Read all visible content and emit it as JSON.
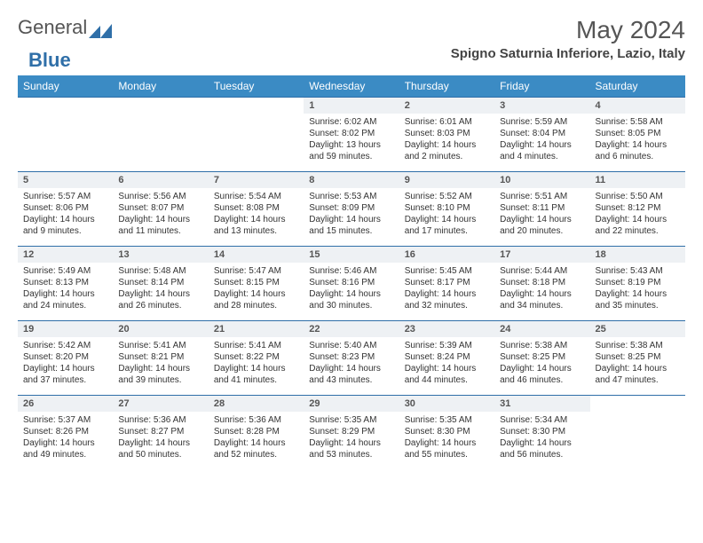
{
  "logo": {
    "text1": "General",
    "text2": "Blue"
  },
  "title": "May 2024",
  "location": "Spigno Saturnia Inferiore, Lazio, Italy",
  "colors": {
    "header_bg": "#3b8bc4",
    "daynum_bg": "#eef1f4",
    "border": "#2f6fa8",
    "text": "#333333",
    "title_text": "#555555"
  },
  "day_names": [
    "Sunday",
    "Monday",
    "Tuesday",
    "Wednesday",
    "Thursday",
    "Friday",
    "Saturday"
  ],
  "weeks": [
    [
      null,
      null,
      null,
      {
        "n": "1",
        "sr": "6:02 AM",
        "ss": "8:02 PM",
        "dl": "13 hours and 59 minutes."
      },
      {
        "n": "2",
        "sr": "6:01 AM",
        "ss": "8:03 PM",
        "dl": "14 hours and 2 minutes."
      },
      {
        "n": "3",
        "sr": "5:59 AM",
        "ss": "8:04 PM",
        "dl": "14 hours and 4 minutes."
      },
      {
        "n": "4",
        "sr": "5:58 AM",
        "ss": "8:05 PM",
        "dl": "14 hours and 6 minutes."
      }
    ],
    [
      {
        "n": "5",
        "sr": "5:57 AM",
        "ss": "8:06 PM",
        "dl": "14 hours and 9 minutes."
      },
      {
        "n": "6",
        "sr": "5:56 AM",
        "ss": "8:07 PM",
        "dl": "14 hours and 11 minutes."
      },
      {
        "n": "7",
        "sr": "5:54 AM",
        "ss": "8:08 PM",
        "dl": "14 hours and 13 minutes."
      },
      {
        "n": "8",
        "sr": "5:53 AM",
        "ss": "8:09 PM",
        "dl": "14 hours and 15 minutes."
      },
      {
        "n": "9",
        "sr": "5:52 AM",
        "ss": "8:10 PM",
        "dl": "14 hours and 17 minutes."
      },
      {
        "n": "10",
        "sr": "5:51 AM",
        "ss": "8:11 PM",
        "dl": "14 hours and 20 minutes."
      },
      {
        "n": "11",
        "sr": "5:50 AM",
        "ss": "8:12 PM",
        "dl": "14 hours and 22 minutes."
      }
    ],
    [
      {
        "n": "12",
        "sr": "5:49 AM",
        "ss": "8:13 PM",
        "dl": "14 hours and 24 minutes."
      },
      {
        "n": "13",
        "sr": "5:48 AM",
        "ss": "8:14 PM",
        "dl": "14 hours and 26 minutes."
      },
      {
        "n": "14",
        "sr": "5:47 AM",
        "ss": "8:15 PM",
        "dl": "14 hours and 28 minutes."
      },
      {
        "n": "15",
        "sr": "5:46 AM",
        "ss": "8:16 PM",
        "dl": "14 hours and 30 minutes."
      },
      {
        "n": "16",
        "sr": "5:45 AM",
        "ss": "8:17 PM",
        "dl": "14 hours and 32 minutes."
      },
      {
        "n": "17",
        "sr": "5:44 AM",
        "ss": "8:18 PM",
        "dl": "14 hours and 34 minutes."
      },
      {
        "n": "18",
        "sr": "5:43 AM",
        "ss": "8:19 PM",
        "dl": "14 hours and 35 minutes."
      }
    ],
    [
      {
        "n": "19",
        "sr": "5:42 AM",
        "ss": "8:20 PM",
        "dl": "14 hours and 37 minutes."
      },
      {
        "n": "20",
        "sr": "5:41 AM",
        "ss": "8:21 PM",
        "dl": "14 hours and 39 minutes."
      },
      {
        "n": "21",
        "sr": "5:41 AM",
        "ss": "8:22 PM",
        "dl": "14 hours and 41 minutes."
      },
      {
        "n": "22",
        "sr": "5:40 AM",
        "ss": "8:23 PM",
        "dl": "14 hours and 43 minutes."
      },
      {
        "n": "23",
        "sr": "5:39 AM",
        "ss": "8:24 PM",
        "dl": "14 hours and 44 minutes."
      },
      {
        "n": "24",
        "sr": "5:38 AM",
        "ss": "8:25 PM",
        "dl": "14 hours and 46 minutes."
      },
      {
        "n": "25",
        "sr": "5:38 AM",
        "ss": "8:25 PM",
        "dl": "14 hours and 47 minutes."
      }
    ],
    [
      {
        "n": "26",
        "sr": "5:37 AM",
        "ss": "8:26 PM",
        "dl": "14 hours and 49 minutes."
      },
      {
        "n": "27",
        "sr": "5:36 AM",
        "ss": "8:27 PM",
        "dl": "14 hours and 50 minutes."
      },
      {
        "n": "28",
        "sr": "5:36 AM",
        "ss": "8:28 PM",
        "dl": "14 hours and 52 minutes."
      },
      {
        "n": "29",
        "sr": "5:35 AM",
        "ss": "8:29 PM",
        "dl": "14 hours and 53 minutes."
      },
      {
        "n": "30",
        "sr": "5:35 AM",
        "ss": "8:30 PM",
        "dl": "14 hours and 55 minutes."
      },
      {
        "n": "31",
        "sr": "5:34 AM",
        "ss": "8:30 PM",
        "dl": "14 hours and 56 minutes."
      },
      null
    ]
  ],
  "labels": {
    "sunrise": "Sunrise:",
    "sunset": "Sunset:",
    "daylight": "Daylight:"
  }
}
